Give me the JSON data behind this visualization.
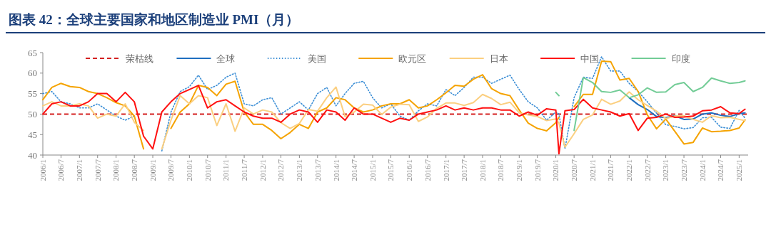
{
  "chart_data": {
    "type": "line",
    "title": "图表 42：全球主要国家和地区制造业 PMI（月）",
    "x": [
      "2006-01",
      "2006-04",
      "2006-07",
      "2006-10",
      "2007-01",
      "2007-04",
      "2007-07",
      "2007-10",
      "2008-01",
      "2008-04",
      "2008-07",
      "2008-10",
      "2009-01",
      "2009-04",
      "2009-07",
      "2009-10",
      "2010-01",
      "2010-04",
      "2010-07",
      "2010-10",
      "2011-01",
      "2011-04",
      "2011-07",
      "2011-10",
      "2012-01",
      "2012-04",
      "2012-07",
      "2012-10",
      "2013-01",
      "2013-04",
      "2013-07",
      "2013-10",
      "2014-01",
      "2014-04",
      "2014-07",
      "2014-10",
      "2015-01",
      "2015-04",
      "2015-07",
      "2015-10",
      "2016-01",
      "2016-04",
      "2016-07",
      "2016-10",
      "2017-01",
      "2017-04",
      "2017-07",
      "2017-10",
      "2018-01",
      "2018-04",
      "2018-07",
      "2018-10",
      "2019-01",
      "2019-04",
      "2019-07",
      "2019-10",
      "2020-01",
      "2020-02",
      "2020-04",
      "2020-07",
      "2020-10",
      "2021-01",
      "2021-04",
      "2021-07",
      "2021-10",
      "2022-01",
      "2022-04",
      "2022-07",
      "2022-10",
      "2023-01",
      "2023-04",
      "2023-07",
      "2023-10",
      "2024-01",
      "2024-04",
      "2024-07",
      "2024-10",
      "2025-01",
      "2025-03"
    ],
    "series": [
      {
        "name": "全球",
        "color": "#1f6fc0",
        "values": [
          null,
          null,
          null,
          null,
          null,
          null,
          null,
          null,
          null,
          null,
          null,
          null,
          null,
          null,
          null,
          null,
          null,
          null,
          null,
          null,
          null,
          null,
          null,
          null,
          null,
          null,
          null,
          null,
          null,
          null,
          null,
          null,
          null,
          null,
          null,
          null,
          null,
          null,
          null,
          null,
          null,
          null,
          null,
          null,
          null,
          null,
          null,
          null,
          null,
          null,
          null,
          null,
          null,
          null,
          null,
          null,
          null,
          null,
          null,
          null,
          null,
          null,
          null,
          null,
          null,
          54,
          52.3,
          51.1,
          49.4,
          49.1,
          49.6,
          48.7,
          48.8,
          50,
          50.3,
          49.7,
          49.4,
          50.1,
          50.3
        ]
      },
      {
        "name": "美国",
        "color": "#3d8fd6",
        "line_style": "dotted",
        "values": [
          55,
          55.5,
          53,
          52.5,
          51.5,
          51.5,
          52.5,
          51,
          49.5,
          48.5,
          49.5,
          null,
          null,
          41,
          50.5,
          55.5,
          56.7,
          59.5,
          56,
          57,
          59,
          60,
          52.5,
          52,
          53.5,
          54,
          50,
          51.5,
          53,
          51,
          55,
          56.5,
          52,
          55,
          57.5,
          58,
          54,
          51.5,
          52.5,
          49.5,
          48.5,
          50.8,
          52.5,
          52,
          56,
          54.5,
          56.5,
          59,
          59,
          57.5,
          58.5,
          59.5,
          56,
          53,
          51.5,
          48.5,
          50.5,
          50,
          41.5,
          54,
          59,
          58.7,
          64,
          60.5,
          60.5,
          57.5,
          55.5,
          53,
          50.2,
          47.4,
          47,
          46.4,
          46.7,
          49.1,
          49.2,
          46.8,
          46.5,
          50.9,
          49
        ]
      },
      {
        "name": "欧元区",
        "color": "#f5a300",
        "values": [
          53.5,
          56.5,
          57.5,
          56.7,
          56.5,
          55.5,
          55,
          54,
          52.8,
          52,
          49.5,
          41.5,
          null,
          null,
          46.5,
          50.5,
          52.5,
          57,
          56.5,
          54.5,
          57.3,
          58,
          50.5,
          47.5,
          47.5,
          46,
          44,
          45.5,
          47.5,
          46.5,
          50.5,
          51.5,
          54,
          53.5,
          51.5,
          50.5,
          51,
          52,
          52.5,
          52.5,
          53.5,
          51.5,
          52,
          53.5,
          55.2,
          57,
          56.8,
          58.5,
          59.6,
          56.2,
          55,
          54.5,
          51,
          47.8,
          46.5,
          45.9,
          47.9,
          49.2,
          null,
          51.8,
          54.8,
          54.8,
          62.9,
          62.8,
          58.3,
          58.7,
          55.5,
          49.8,
          46.4,
          48.8,
          45.8,
          42.7,
          43.1,
          46.6,
          45.7,
          45.8,
          46,
          46.6,
          48.6
        ]
      },
      {
        "name": "日本",
        "color": "#fbcf80",
        "values": [
          52,
          53,
          52,
          52,
          52.5,
          52,
          49,
          50,
          49.5,
          52.5,
          48,
          46,
          null,
          41.5,
          48.5,
          54.5,
          52.5,
          54.5,
          54,
          47.2,
          52.5,
          45.8,
          51.5,
          50,
          51,
          50.5,
          47.9,
          46.5,
          47.7,
          51.1,
          50.7,
          54,
          56.6,
          49.4,
          50.5,
          52.4,
          52.2,
          49.9,
          51.7,
          52.4,
          52.3,
          48.2,
          49.3,
          51.4,
          52.7,
          52.7,
          52.1,
          52.8,
          54.8,
          53.8,
          52.3,
          52.9,
          50.3,
          49.8,
          49.4,
          48.4,
          48.8,
          47.8,
          41.9,
          45.2,
          48.7,
          49.8,
          53.6,
          52.4,
          53.2,
          55.4,
          53.5,
          52.1,
          50.7,
          48.9,
          49.5,
          49.6,
          48.7,
          48,
          49.6,
          49.1,
          49.2,
          48.7,
          48.4
        ]
      },
      {
        "name": "中国",
        "color": "#ff1010",
        "values": [
          50,
          52.5,
          53,
          52,
          52,
          53,
          55,
          55,
          53,
          55.3,
          53,
          44.6,
          41.5,
          50.5,
          53,
          55,
          56,
          57,
          51.5,
          53,
          53.5,
          52,
          50.5,
          49.5,
          49,
          49,
          48,
          50,
          51,
          50.5,
          48,
          51,
          50.5,
          48.5,
          51.5,
          50,
          50,
          49,
          48,
          49,
          48.5,
          50,
          50.5,
          51,
          52,
          51,
          51.5,
          51,
          51.5,
          51.5,
          51,
          51,
          49.5,
          50.5,
          49.7,
          51.3,
          51,
          40.3,
          50.8,
          51.1,
          53.6,
          51.5,
          51,
          50.5,
          49.5,
          50.1,
          46,
          49,
          49.2,
          50,
          49.2,
          49.3,
          49.5,
          50.8,
          51,
          51.8,
          50.3,
          50.1,
          51.2
        ]
      },
      {
        "name": "印度",
        "color": "#72cc96",
        "values": [
          null,
          null,
          null,
          null,
          null,
          null,
          null,
          null,
          null,
          null,
          null,
          null,
          null,
          null,
          null,
          null,
          null,
          null,
          null,
          null,
          null,
          null,
          null,
          null,
          null,
          null,
          null,
          null,
          null,
          null,
          null,
          null,
          null,
          null,
          null,
          null,
          null,
          null,
          null,
          null,
          null,
          null,
          null,
          null,
          null,
          null,
          null,
          null,
          null,
          null,
          null,
          null,
          null,
          null,
          null,
          null,
          55.3,
          54.5,
          null,
          46,
          58.9,
          57.7,
          55.5,
          55.3,
          55.9,
          54,
          54.7,
          56.4,
          55.3,
          55.4,
          57.2,
          57.7,
          55.5,
          56.5,
          58.8,
          58.1,
          57.5,
          57.7,
          58.1
        ]
      }
    ],
    "ref_lines": [
      {
        "axis": "y",
        "value": 50,
        "label": "荣枯线",
        "color": "#d42020",
        "line_style": "dashed"
      }
    ],
    "xlim": [
      "2006-01",
      "2025-04"
    ],
    "xticks": [
      {
        "value": "2006-01",
        "label": "2006/1"
      },
      {
        "value": "2006-07",
        "label": "2006/7"
      },
      {
        "value": "2007-01",
        "label": "2007/1"
      },
      {
        "value": "2007-07",
        "label": "2007/7"
      },
      {
        "value": "2008-01",
        "label": "2008/1"
      },
      {
        "value": "2008-07",
        "label": "2008/7"
      },
      {
        "value": "2009-01",
        "label": "2009/1"
      },
      {
        "value": "2009-07",
        "label": "2009/7"
      },
      {
        "value": "2010-01",
        "label": "2010/1"
      },
      {
        "value": "2010-07",
        "label": "2010/7"
      },
      {
        "value": "2011-01",
        "label": "2011/1"
      },
      {
        "value": "2011-07",
        "label": "2011/7"
      },
      {
        "value": "2012-01",
        "label": "2012/1"
      },
      {
        "value": "2012-07",
        "label": "2012/7"
      },
      {
        "value": "2013-01",
        "label": "2013/1"
      },
      {
        "value": "2013-07",
        "label": "2013/7"
      },
      {
        "value": "2014-01",
        "label": "2014/1"
      },
      {
        "value": "2014-07",
        "label": "2014/7"
      },
      {
        "value": "2015-01",
        "label": "2015/1"
      },
      {
        "value": "2015-07",
        "label": "2015/7"
      },
      {
        "value": "2016-01",
        "label": "2016/1"
      },
      {
        "value": "2016-07",
        "label": "2016/7"
      },
      {
        "value": "2017-01",
        "label": "2017/1"
      },
      {
        "value": "2017-07",
        "label": "2017/7"
      },
      {
        "value": "2018-01",
        "label": "2018/1"
      },
      {
        "value": "2018-07",
        "label": "2018/7"
      },
      {
        "value": "2019-01",
        "label": "2019/1"
      },
      {
        "value": "2019-07",
        "label": "2019/7"
      },
      {
        "value": "2020-01",
        "label": "2020/1"
      },
      {
        "value": "2020-07",
        "label": "2020/7"
      },
      {
        "value": "2021-01",
        "label": "2021/1"
      },
      {
        "value": "2021-07",
        "label": "2021/7"
      },
      {
        "value": "2022-01",
        "label": "2022/1"
      },
      {
        "value": "2022-07",
        "label": "2022/7"
      },
      {
        "value": "2023-01",
        "label": "2023/1"
      },
      {
        "value": "2023-07",
        "label": "2023/7"
      },
      {
        "value": "2024-01",
        "label": "2024/1"
      },
      {
        "value": "2024-07",
        "label": "2024/7"
      },
      {
        "value": "2025-01",
        "label": "2025/1"
      }
    ],
    "ylim": [
      40,
      65
    ],
    "yticks": [
      40,
      45,
      50,
      55,
      60,
      65
    ],
    "grid": false,
    "legend": "top",
    "line_style": "solid"
  }
}
